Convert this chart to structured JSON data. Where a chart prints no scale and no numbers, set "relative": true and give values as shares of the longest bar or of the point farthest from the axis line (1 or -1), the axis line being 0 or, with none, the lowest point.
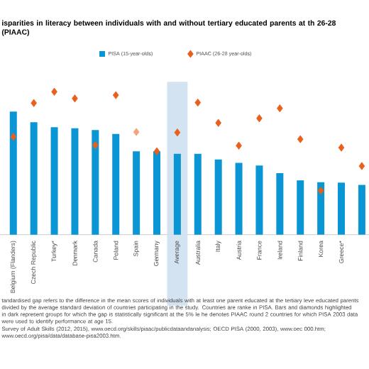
{
  "chart_data": {
    "type": "bar",
    "relative": true,
    "title": "isparities in literacy between individuals with and without tertiary educated parents at th 26-28 (PIAAC)",
    "categories": [
      "Belgium (Flanders)",
      "Czech Republic",
      "Turkey*",
      "Denmark",
      "Canada",
      "Poland",
      "Spain",
      "Germany",
      "Average",
      "Australia",
      "Italy",
      "Austria",
      "France",
      "Ireland",
      "Finland",
      "Korea",
      "Greece*",
      null
    ],
    "series": [
      {
        "name": "PISA (15-year-olds)",
        "color": "#0a96d4",
        "values": [
          0.861,
          0.787,
          0.752,
          0.745,
          0.732,
          0.705,
          0.583,
          0.583,
          0.566,
          0.566,
          0.526,
          0.503,
          0.484,
          0.43,
          0.38,
          0.367,
          0.364,
          0.348
        ]
      },
      {
        "name": "PIAAC (26-28 year-olds)",
        "type": "scatter",
        "marker": "diamond",
        "color": "#e8601c",
        "colors": [
          "#e8601c",
          "#e8601c",
          "#e8601c",
          "#e8601c",
          "#e8601c",
          "#e8601c",
          "#f2a57a",
          "#e8601c",
          "#e8601c",
          "#e8601c",
          "#e8601c",
          "#e8601c",
          "#e8601c",
          "#e8601c",
          "#e8601c",
          "#e8601c",
          "#e8601c",
          "#e8601c"
        ],
        "values": [
          0.685,
          0.921,
          1,
          0.953,
          0.626,
          0.976,
          0.718,
          0.583,
          0.715,
          0.924,
          0.782,
          0.623,
          0.814,
          0.884,
          0.668,
          0.308,
          0.609,
          0.48
        ]
      }
    ],
    "bands": [
      {
        "axis": "x",
        "from": "Average",
        "to": "Average",
        "color": "#d3e3f1"
      }
    ],
    "legend": "top",
    "annotations": [
      "tandardised gap refers to the difference in the mean scores of individuals with at least one parent educated at the tertiary leve educated parents divided by the average standard deviation of countries participating in the study. Countries are ranke in PISA. Bars and diamonds highlighted in dark represent groups for which the gap is statistically significant at the 5% le he denotes PIAAC round 2 countries for which PISA 2003 data were used to identify performance at age 15.",
      "Survey of Adult Skills (2012, 2015), www.oecd.org/skills/piaac/publicdataandanalysis; OECD PISA (2000, 2003), www.oec 000.htm; www.oecd.org/pisa/data/database-pisa2003.htm."
    ]
  }
}
